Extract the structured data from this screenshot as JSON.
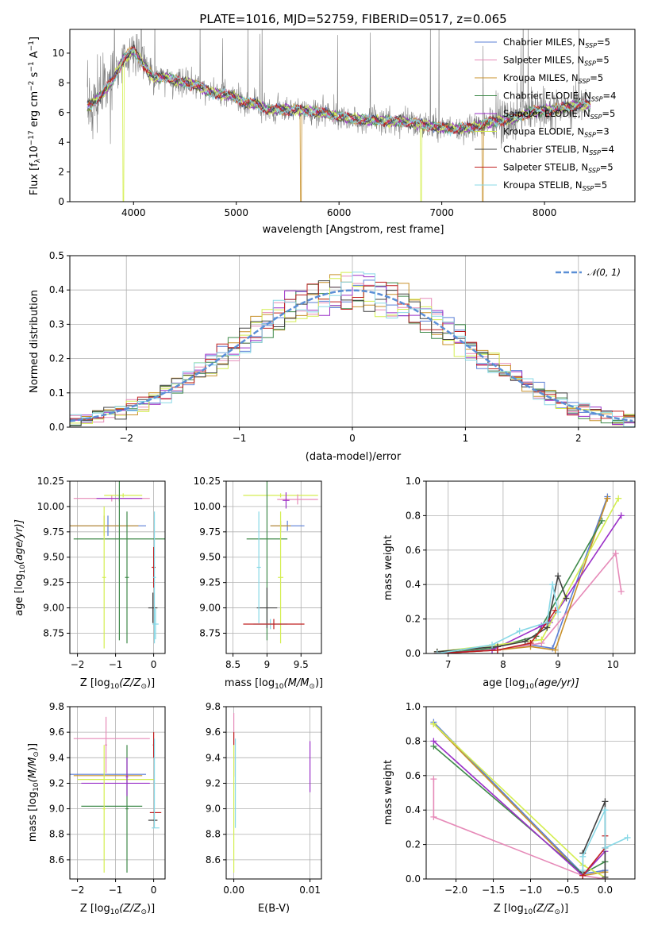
{
  "colors": {
    "Chabrier MILES": "#5b7fd6",
    "Salpeter MILES": "#e68ab8",
    "Kroupa MILES": "#c8902a",
    "Chabrier ELODIE": "#3f8a4a",
    "Salpeter ELODIE": "#9b30c8",
    "Kroupa ELODIE": "#d4ee50",
    "Chabrier STELIB": "#404040",
    "Salpeter STELIB": "#c02020",
    "Kroupa STELIB": "#88d8e6",
    "data": "#808080",
    "normal": "#5b8fd6"
  },
  "chart_data": [
    {
      "id": "spectrum",
      "type": "line",
      "title": "PLATE=1016, MJD=52759, FIBERID=0517, z=0.065",
      "xlabel": "wavelength [Angstrom, rest frame]",
      "ylabel": "Flux [f",
      "ylabel_sub": "λ",
      "ylabel_rest": "10",
      "ylabel_exp": "−17",
      "ylabel_tail": " erg cm",
      "ylabel_exp2": "−2",
      "ylabel_tail2": " s",
      "ylabel_exp3": "−1",
      "ylabel_tail3": " A",
      "ylabel_exp4": "−1",
      "ylabel_end": "]",
      "xlim": [
        3380,
        8880
      ],
      "ylim": [
        0,
        11.6
      ],
      "xticks": [
        4000,
        5000,
        6000,
        7000,
        8000
      ],
      "yticks": [
        0,
        2,
        4,
        6,
        8,
        10
      ],
      "legend_position": "top-right",
      "continuum_knots": {
        "x": [
          3550,
          3600,
          3700,
          3800,
          3900,
          4000,
          4100,
          4200,
          4300,
          4400,
          4500,
          4600,
          4700,
          4800,
          4900,
          5000,
          5100,
          5200,
          5300,
          5500,
          5700,
          5900,
          6100,
          6300,
          6500,
          6600,
          6700,
          6900,
          7100,
          7300,
          7500,
          7700,
          7900,
          8100,
          8300,
          8450
        ],
        "y": [
          6.4,
          6.6,
          7.3,
          8.2,
          9.6,
          10.2,
          9.2,
          8.3,
          8.4,
          8.2,
          8.0,
          7.9,
          7.5,
          7.3,
          7.2,
          7.0,
          6.6,
          6.6,
          6.2,
          6.2,
          6.1,
          5.9,
          5.6,
          5.5,
          5.4,
          5.4,
          5.3,
          5.1,
          4.9,
          5.0,
          5.4,
          5.6,
          6.1,
          6.2,
          6.5,
          6.5
        ]
      },
      "legend": [
        {
          "name": "Chabrier MILES",
          "nssp": "5"
        },
        {
          "name": "Salpeter MILES",
          "nssp": "5"
        },
        {
          "name": "Kroupa MILES",
          "nssp": "5"
        },
        {
          "name": "Chabrier ELODIE",
          "nssp": "4"
        },
        {
          "name": "Salpeter ELODIE",
          "nssp": "5"
        },
        {
          "name": "Kroupa ELODIE",
          "nssp": "3"
        },
        {
          "name": "Chabrier STELIB",
          "nssp": "4"
        },
        {
          "name": "Salpeter STELIB",
          "nssp": "5"
        },
        {
          "name": "Kroupa STELIB",
          "nssp": "5"
        }
      ],
      "legend_label_suffix": ", N",
      "legend_label_sub": "SSP",
      "legend_label_eq": "="
    },
    {
      "id": "residuals",
      "type": "histogram",
      "xlabel": "(data-model)/error",
      "ylabel": "Normed distribution",
      "xlim": [
        -2.5,
        2.5
      ],
      "ylim": [
        0,
        0.5
      ],
      "xticks": [
        -2,
        -1,
        0,
        1,
        2
      ],
      "yticks": [
        0.0,
        0.1,
        0.2,
        0.3,
        0.4,
        0.5
      ],
      "bin_width": 0.1,
      "legend": "𝒩(0, 1)",
      "legend_position": "top-right"
    },
    {
      "id": "age-vs-Z",
      "type": "errorbar",
      "xlabel": "Z [log",
      "xlabel_sub": "10",
      "xlabel_rest": "(Z/Z",
      "xlabel_sub2": "⊙",
      "xlabel_end": ")]",
      "ylabel": "age  [log",
      "ylabel_sub": "10",
      "ylabel_rest": "(age/yr)]",
      "xlim": [
        -2.2,
        0.3
      ],
      "ylim": [
        8.55,
        10.25
      ],
      "xticks": [
        -2,
        -1,
        0
      ],
      "yticks": [
        8.75,
        9.0,
        9.25,
        9.5,
        9.75,
        10.0,
        10.25
      ],
      "points": [
        {
          "model": "Salpeter MILES",
          "x": -1.1,
          "xerr": 1.0,
          "y": 10.08,
          "yerr": 0.03
        },
        {
          "model": "Salpeter ELODIE",
          "x": -0.9,
          "xerr": 0.6,
          "y": 10.08,
          "yerr": 0.03
        },
        {
          "model": "Kroupa ELODIE",
          "x": -0.8,
          "xerr": 0.5,
          "y": 10.11,
          "yerr": 0.02
        },
        {
          "model": "Chabrier MILES",
          "x": -1.2,
          "xerr": 1.0,
          "y": 9.81,
          "yerr": 0.1
        },
        {
          "model": "Kroupa MILES",
          "x": -1.3,
          "xerr": 0.9,
          "y": 9.81,
          "yerr": 0.1
        },
        {
          "model": "Chabrier ELODIE",
          "x": -0.9,
          "xerr": 1.2,
          "y": 9.68,
          "yerr": 1.0
        },
        {
          "model": "Kroupa ELODIE",
          "x": -1.3,
          "xerr": 0.05,
          "y": 9.3,
          "yerr": 0.7
        },
        {
          "model": "Chabrier ELODIE",
          "x": -0.7,
          "xerr": 0.05,
          "y": 9.3,
          "yerr": 0.65
        },
        {
          "model": "Chabrier STELIB",
          "x": -0.02,
          "xerr": 0.12,
          "y": 9.0,
          "yerr": 0.15
        },
        {
          "model": "Salpeter STELIB",
          "x": 0.0,
          "xerr": 0.05,
          "y": 9.4,
          "yerr": 0.2
        },
        {
          "model": "Kroupa STELIB",
          "x": 0.05,
          "xerr": 0.08,
          "y": 8.84,
          "yerr": 0.15
        },
        {
          "model": "Kroupa STELIB",
          "x": 0.02,
          "xerr": 0.04,
          "y": 9.3,
          "yerr": 0.65
        }
      ]
    },
    {
      "id": "age-vs-mass",
      "type": "errorbar",
      "xlabel": "mass [log",
      "xlabel_sub": "10",
      "xlabel_rest": "(M/M",
      "xlabel_sub2": "⊙",
      "xlabel_end": ")]",
      "xlim": [
        8.4,
        9.8
      ],
      "ylim": [
        8.55,
        10.25
      ],
      "xticks": [
        8.5,
        9.0,
        9.5
      ],
      "yticks": [
        8.75,
        9.0,
        9.25,
        9.5,
        9.75,
        10.0,
        10.25
      ],
      "points": [
        {
          "model": "Kroupa ELODIE",
          "x": 9.2,
          "xerr": 0.55,
          "y": 10.11,
          "yerr": 0.02
        },
        {
          "model": "Salpeter MILES",
          "x": 9.45,
          "xerr": 0.3,
          "y": 10.07,
          "yerr": 0.05
        },
        {
          "model": "Salpeter ELODIE",
          "x": 9.28,
          "xerr": 0.05,
          "y": 10.06,
          "yerr": 0.08
        },
        {
          "model": "Chabrier MILES",
          "x": 9.3,
          "xerr": 0.25,
          "y": 9.81,
          "yerr": 0.05
        },
        {
          "model": "Kroupa MILES",
          "x": 9.2,
          "xerr": 0.15,
          "y": 9.81,
          "yerr": 0.05
        },
        {
          "model": "Chabrier ELODIE",
          "x": 9.0,
          "xerr": 0.3,
          "y": 9.68,
          "yerr": 1.0
        },
        {
          "model": "Kroupa ELODIE",
          "x": 9.2,
          "xerr": 0.04,
          "y": 9.3,
          "yerr": 0.65
        },
        {
          "model": "Chabrier STELIB",
          "x": 9.0,
          "xerr": 0.15,
          "y": 9.0,
          "yerr": 0.2
        },
        {
          "model": "Kroupa STELIB",
          "x": 9.05,
          "xerr": 0.25,
          "y": 8.84,
          "yerr": 0.05
        },
        {
          "model": "Salpeter STELIB",
          "x": 9.1,
          "xerr": 0.45,
          "y": 8.84,
          "yerr": 0.05
        },
        {
          "model": "Kroupa STELIB",
          "x": 8.88,
          "xerr": 0.03,
          "y": 9.4,
          "yerr": 0.55
        }
      ]
    },
    {
      "id": "weight-vs-age",
      "type": "line",
      "xlabel": "age  [log",
      "xlabel_sub": "10",
      "xlabel_rest": "(age/yr)]",
      "ylabel": "mass weight",
      "xlim": [
        6.6,
        10.4
      ],
      "ylim": [
        0,
        1.0
      ],
      "xticks": [
        7,
        8,
        9,
        10
      ],
      "yticks": [
        0.0,
        0.2,
        0.4,
        0.6,
        0.8,
        1.0
      ],
      "series": [
        {
          "name": "Chabrier MILES",
          "x": [
            6.8,
            7.9,
            8.5,
            8.9,
            9.9
          ],
          "y": [
            0.0,
            0.02,
            0.05,
            0.03,
            0.91
          ]
        },
        {
          "name": "Salpeter MILES",
          "x": [
            6.8,
            7.9,
            8.7,
            10.05,
            10.15
          ],
          "y": [
            0.0,
            0.02,
            0.06,
            0.58,
            0.36
          ]
        },
        {
          "name": "Kroupa MILES",
          "x": [
            6.8,
            7.9,
            8.5,
            8.95,
            9.9
          ],
          "y": [
            0.0,
            0.02,
            0.04,
            0.02,
            0.9
          ]
        },
        {
          "name": "Chabrier ELODIE",
          "x": [
            6.8,
            7.8,
            8.6,
            9.8
          ],
          "y": [
            0.0,
            0.03,
            0.1,
            0.77
          ]
        },
        {
          "name": "Salpeter ELODIE",
          "x": [
            6.8,
            7.8,
            8.7,
            8.85,
            10.15
          ],
          "y": [
            0.0,
            0.02,
            0.16,
            0.18,
            0.8
          ]
        },
        {
          "name": "Kroupa ELODIE",
          "x": [
            6.8,
            8.7,
            10.1
          ],
          "y": [
            0.01,
            0.08,
            0.9
          ]
        },
        {
          "name": "Chabrier STELIB",
          "x": [
            6.8,
            7.9,
            8.4,
            8.8,
            9.0,
            9.15
          ],
          "y": [
            0.01,
            0.04,
            0.07,
            0.15,
            0.45,
            0.32
          ]
        },
        {
          "name": "Salpeter STELIB",
          "x": [
            6.8,
            7.9,
            8.5,
            8.8,
            8.95
          ],
          "y": [
            0.0,
            0.02,
            0.06,
            0.18,
            0.25
          ]
        },
        {
          "name": "Kroupa STELIB",
          "x": [
            6.8,
            7.8,
            8.3,
            8.8,
            8.9,
            9.0
          ],
          "y": [
            0.0,
            0.05,
            0.13,
            0.18,
            0.4,
            0.24
          ]
        }
      ]
    },
    {
      "id": "mass-vs-Z",
      "type": "errorbar",
      "xlabel": "Z [log",
      "xlabel_sub": "10",
      "xlabel_rest": "(Z/Z",
      "xlabel_sub2": "⊙",
      "xlabel_end": ")]",
      "ylabel": "mass [log",
      "ylabel_sub": "10",
      "ylabel_rest": "(M/M",
      "ylabel_sub2": "⊙",
      "ylabel_end": ")]",
      "xlim": [
        -2.2,
        0.3
      ],
      "ylim": [
        8.45,
        9.8
      ],
      "xticks": [
        -2,
        -1,
        0
      ],
      "yticks": [
        8.6,
        8.8,
        9.0,
        9.2,
        9.4,
        9.6,
        9.8
      ],
      "points": [
        {
          "model": "Salpeter MILES",
          "x": -1.1,
          "xerr": 1.0,
          "y": 9.55,
          "yerr": 0.0
        },
        {
          "model": "Salpeter MILES",
          "x": -1.25,
          "xerr": 0.03,
          "y": 9.5,
          "yerr": 0.22
        },
        {
          "model": "Chabrier MILES",
          "x": -1.2,
          "xerr": 1.0,
          "y": 9.27,
          "yerr": 0.0
        },
        {
          "model": "Kroupa MILES",
          "x": -1.2,
          "xerr": 0.9,
          "y": 9.26,
          "yerr": 0.0
        },
        {
          "model": "Kroupa ELODIE",
          "x": -1.0,
          "xerr": 1.0,
          "y": 9.23,
          "yerr": 0.0
        },
        {
          "model": "Salpeter ELODIE",
          "x": -1.0,
          "xerr": 0.9,
          "y": 9.2,
          "yerr": 0.0
        },
        {
          "model": "Chabrier ELODIE",
          "x": -1.1,
          "xerr": 0.8,
          "y": 9.02,
          "yerr": 0.0
        },
        {
          "model": "Kroupa ELODIE",
          "x": -1.3,
          "xerr": 0.04,
          "y": 9.0,
          "yerr": 0.5
        },
        {
          "model": "Chabrier ELODIE",
          "x": -0.7,
          "xerr": 0.04,
          "y": 9.0,
          "yerr": 0.5
        },
        {
          "model": "Salpeter ELODIE",
          "x": -0.7,
          "xerr": 0.03,
          "y": 9.25,
          "yerr": 0.15
        },
        {
          "model": "Chabrier STELIB",
          "x": -0.02,
          "xerr": 0.12,
          "y": 8.91,
          "yerr": 0.0
        },
        {
          "model": "Salpeter STELIB",
          "x": 0.05,
          "xerr": 0.15,
          "y": 8.97,
          "yerr": 0.0
        },
        {
          "model": "Salpeter STELIB",
          "x": 0.0,
          "xerr": 0.02,
          "y": 9.5,
          "yerr": 0.1
        },
        {
          "model": "Kroupa STELIB",
          "x": 0.05,
          "xerr": 0.1,
          "y": 8.85,
          "yerr": 0.0
        },
        {
          "model": "Kroupa STELIB",
          "x": 0.02,
          "xerr": 0.02,
          "y": 9.2,
          "yerr": 0.35
        }
      ]
    },
    {
      "id": "mass-vs-EBV",
      "type": "errorbar",
      "xlabel": "E(B-V)",
      "xlim": [
        -0.001,
        0.0115
      ],
      "ylim": [
        8.45,
        9.8
      ],
      "xticks": [
        0.0,
        0.01
      ],
      "xticklabels": [
        "0.00",
        "0.01"
      ],
      "yticks": [
        8.6,
        8.8,
        9.0,
        9.2,
        9.4,
        9.6,
        9.8
      ],
      "points": [
        {
          "model": "Salpeter MILES",
          "x": 0.0,
          "xerr": 0.0,
          "y": 9.5,
          "yerr": 0.25
        },
        {
          "model": "Salpeter STELIB",
          "x": 0.0,
          "xerr": 0.0,
          "y": 9.55,
          "yerr": 0.05
        },
        {
          "model": "Kroupa ELODIE",
          "x": 0.0,
          "xerr": 0.0,
          "y": 9.0,
          "yerr": 0.5
        },
        {
          "model": "Kroupa STELIB",
          "x": 0.0002,
          "xerr": 0.0,
          "y": 9.2,
          "yerr": 0.35
        },
        {
          "model": "Salpeter ELODIE",
          "x": 0.01,
          "xerr": 0.0,
          "y": 9.33,
          "yerr": 0.2
        }
      ]
    },
    {
      "id": "weight-vs-Z",
      "type": "line",
      "xlabel": "Z [log",
      "xlabel_sub": "10",
      "xlabel_rest": "(Z/Z",
      "xlabel_sub2": "⊙",
      "xlabel_end": ")]",
      "ylabel": "mass weight",
      "xlim": [
        -2.4,
        0.4
      ],
      "ylim": [
        0,
        1.0
      ],
      "xticks": [
        -2.0,
        -1.5,
        -1.0,
        -0.5,
        0.0
      ],
      "xticklabels": [
        "−2.0",
        "−1.5",
        "−1.0",
        "−0.5",
        "0.0"
      ],
      "yticks": [
        0.0,
        0.2,
        0.4,
        0.6,
        0.8,
        1.0
      ],
      "series": [
        {
          "name": "Chabrier MILES",
          "x": [
            -2.3,
            -0.3,
            0.0
          ],
          "y": [
            0.91,
            0.03,
            0.05
          ]
        },
        {
          "name": "Salpeter MILES",
          "x": [
            -2.3,
            -2.3,
            -0.3,
            0.0
          ],
          "y": [
            0.58,
            0.36,
            0.02,
            0.0
          ]
        },
        {
          "name": "Kroupa MILES",
          "x": [
            -2.3,
            -0.3,
            0.0
          ],
          "y": [
            0.9,
            0.02,
            0.04
          ]
        },
        {
          "name": "Chabrier ELODIE",
          "x": [
            -2.3,
            -0.3,
            0.0
          ],
          "y": [
            0.77,
            0.03,
            0.1
          ]
        },
        {
          "name": "Salpeter ELODIE",
          "x": [
            -2.3,
            -0.3,
            0.0
          ],
          "y": [
            0.8,
            0.02,
            0.16
          ]
        },
        {
          "name": "Kroupa ELODIE",
          "x": [
            -2.3,
            -0.3,
            0.0
          ],
          "y": [
            0.9,
            0.08,
            0.01
          ]
        },
        {
          "name": "Chabrier STELIB",
          "x": [
            -0.3,
            -0.3,
            0.0,
            0.0
          ],
          "y": [
            0.04,
            0.15,
            0.45,
            0.01
          ]
        },
        {
          "name": "Salpeter STELIB",
          "x": [
            -0.3,
            0.0,
            0.0
          ],
          "y": [
            0.02,
            0.18,
            0.25
          ]
        },
        {
          "name": "Kroupa STELIB",
          "x": [
            -0.3,
            -0.3,
            0.0,
            0.0,
            0.3
          ],
          "y": [
            0.05,
            0.13,
            0.4,
            0.18,
            0.24
          ]
        }
      ]
    }
  ]
}
